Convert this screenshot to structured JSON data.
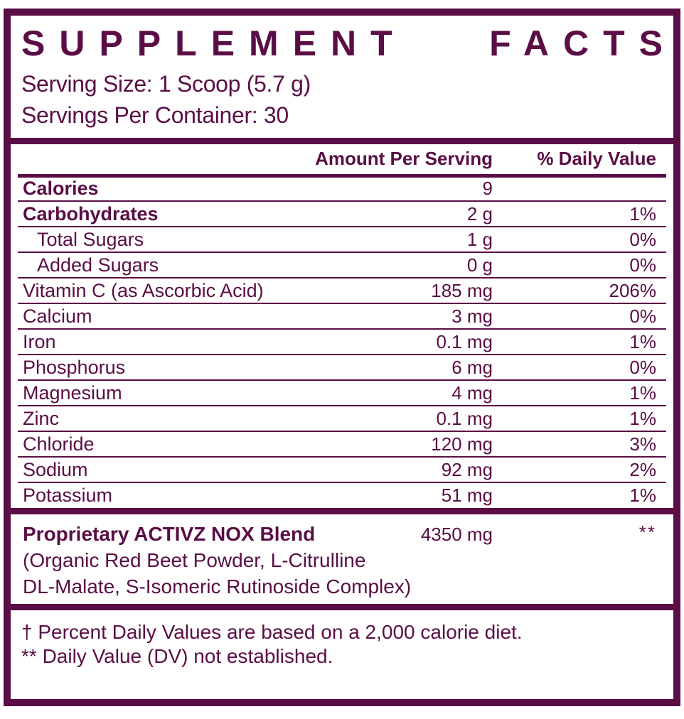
{
  "colors": {
    "brand": "#5a0e45",
    "background": "#ffffff"
  },
  "header": {
    "title_word1": "SUPPLEMENT",
    "title_word2": "FACTS",
    "serving_size": "Serving Size: 1 Scoop (5.7 g)",
    "servings_per_container": "Servings Per Container: 30"
  },
  "table": {
    "columns": {
      "amount": "Amount Per Serving",
      "dv": "% Daily Value"
    },
    "rows": [
      {
        "name": "Calories",
        "amount": "9",
        "dv": "",
        "bold": true,
        "indent": false
      },
      {
        "name": "Carbohydrates",
        "amount": "2 g",
        "dv": "1%",
        "bold": true,
        "indent": false
      },
      {
        "name": "Total Sugars",
        "amount": "1 g",
        "dv": "0%",
        "bold": false,
        "indent": true
      },
      {
        "name": "Added Sugars",
        "amount": "0 g",
        "dv": "0%",
        "bold": false,
        "indent": true
      },
      {
        "name": "Vitamin C (as Ascorbic Acid)",
        "amount": "185 mg",
        "dv": "206%",
        "bold": false,
        "indent": false
      },
      {
        "name": "Calcium",
        "amount": "3 mg",
        "dv": "0%",
        "bold": false,
        "indent": false
      },
      {
        "name": "Iron",
        "amount": "0.1 mg",
        "dv": "1%",
        "bold": false,
        "indent": false
      },
      {
        "name": "Phosphorus",
        "amount": "6 mg",
        "dv": "0%",
        "bold": false,
        "indent": false
      },
      {
        "name": "Magnesium",
        "amount": "4 mg",
        "dv": "1%",
        "bold": false,
        "indent": false
      },
      {
        "name": "Zinc",
        "amount": "0.1 mg",
        "dv": "1%",
        "bold": false,
        "indent": false
      },
      {
        "name": "Chloride",
        "amount": "120 mg",
        "dv": "3%",
        "bold": false,
        "indent": false
      },
      {
        "name": "Sodium",
        "amount": "92 mg",
        "dv": "2%",
        "bold": false,
        "indent": false
      },
      {
        "name": "Potassium",
        "amount": "51 mg",
        "dv": "1%",
        "bold": false,
        "indent": false
      }
    ]
  },
  "blend": {
    "name": "Proprietary ACTIVZ NOX Blend",
    "amount": "4350 mg",
    "dv_symbol": "**",
    "ingredients_line1": "(Organic Red Beet Powder, L-Citrulline",
    "ingredients_line2": "DL-Malate, S-Isomeric Rutinoside Complex)"
  },
  "footnotes": {
    "0": "† Percent Daily Values are based on a 2,000 calorie diet.",
    "1": "** Daily Value (DV) not established."
  }
}
